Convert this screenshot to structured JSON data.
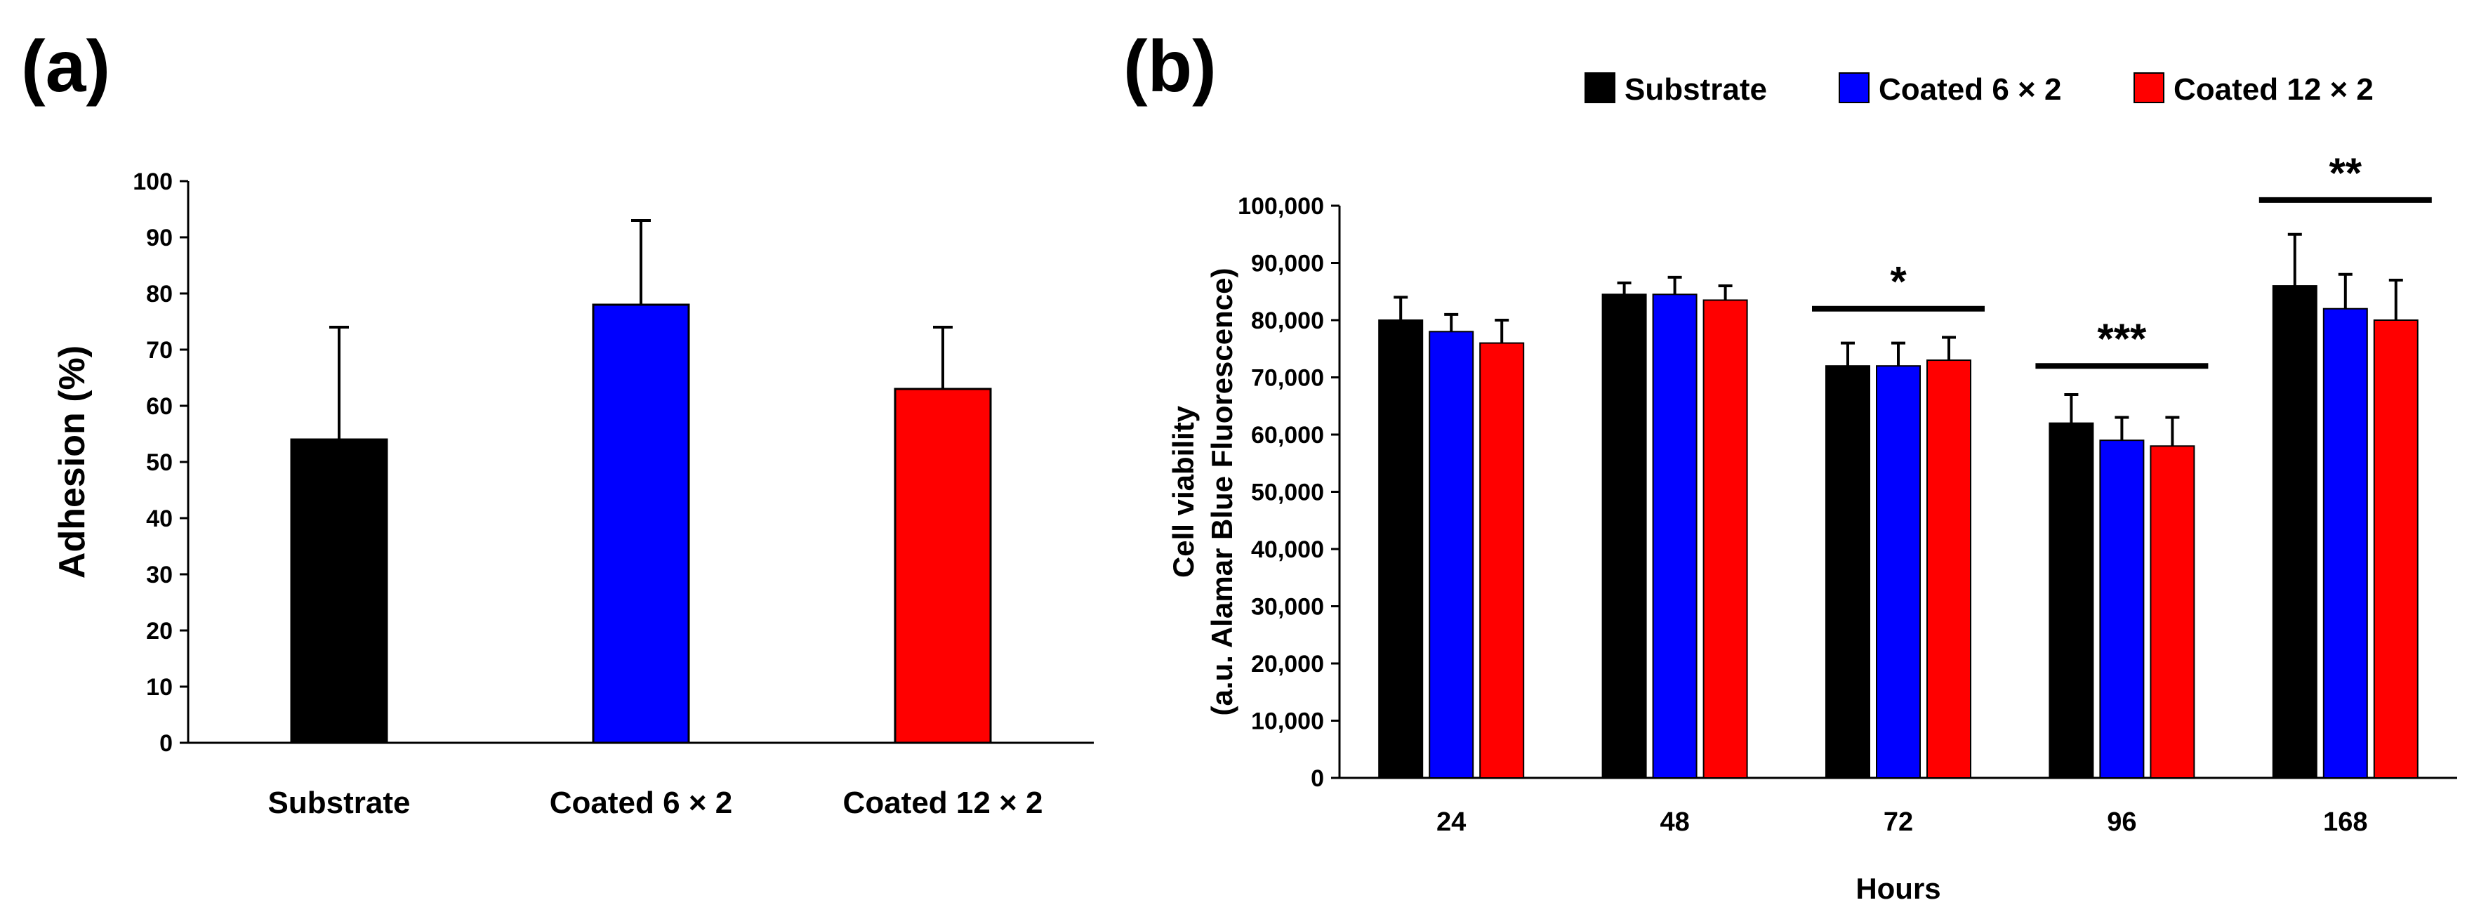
{
  "chart_data": [
    {
      "panel": "(a)",
      "type": "bar",
      "categories": [
        "Substrate",
        "Coated 6 × 2",
        "Coated 12 × 2"
      ],
      "values": [
        54,
        78,
        63
      ],
      "errors": [
        20,
        15,
        11
      ],
      "colors": [
        "#000000",
        "#0000FF",
        "#FF0000"
      ],
      "ylabel": "Adhesion (%)",
      "ylim": [
        0,
        100
      ],
      "yticks": [
        "0",
        "10",
        "20",
        "30",
        "40",
        "50",
        "60",
        "70",
        "80",
        "90",
        "100"
      ],
      "grid": false
    },
    {
      "panel": "(b)",
      "type": "bar",
      "categories": [
        "24",
        "48",
        "72",
        "96",
        "168"
      ],
      "series": [
        {
          "name": "Substrate",
          "color": "#000000",
          "values": [
            80000,
            84500,
            72000,
            62000,
            86000
          ],
          "errors": [
            4000,
            2000,
            4000,
            5000,
            9000
          ]
        },
        {
          "name": "Coated 6 × 2",
          "color": "#0000FF",
          "values": [
            78000,
            84500,
            72000,
            59000,
            82000
          ],
          "errors": [
            3000,
            3000,
            4000,
            4000,
            6000
          ]
        },
        {
          "name": "Coated 12 × 2",
          "color": "#FF0000",
          "values": [
            76000,
            83500,
            73000,
            58000,
            80000
          ],
          "errors": [
            4000,
            2500,
            4000,
            5000,
            7000
          ]
        }
      ],
      "xlabel": "Hours",
      "ylabel_line1": "Cell viability",
      "ylabel_line2": "(a.u. Alamar Blue Fluorescence)",
      "ylim": [
        0,
        100000
      ],
      "yticks": [
        "0",
        "10,000",
        "20,000",
        "30,000",
        "40,000",
        "50,000",
        "60,000",
        "70,000",
        "80,000",
        "90,000",
        "100,000"
      ],
      "legend_position": "top",
      "significance": [
        {
          "category": "72",
          "label": "*",
          "line_y": 82000
        },
        {
          "category": "96",
          "label": "***",
          "line_y": 72000
        },
        {
          "category": "168",
          "label": "**",
          "line_y": 101000
        }
      ],
      "grid": false
    }
  ]
}
